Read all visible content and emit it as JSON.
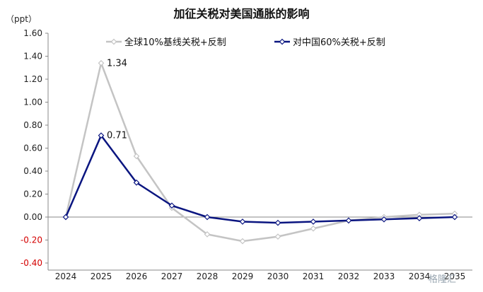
{
  "chart_data": {
    "type": "line",
    "title": "加征关税对美国通胀的影响",
    "unit": "（ppt）",
    "x": [
      "2024",
      "2025",
      "2026",
      "2027",
      "2028",
      "2029",
      "2030",
      "2031",
      "2032",
      "2033",
      "2034",
      "2035"
    ],
    "ylim": [
      -0.4,
      1.6
    ],
    "yticks": [
      "1.60",
      "1.40",
      "1.20",
      "1.00",
      "0.80",
      "0.60",
      "0.40",
      "0.20",
      "0.00",
      "-0.20",
      "-0.40"
    ],
    "grid": false,
    "legend": "top",
    "series": [
      {
        "name": "全球10%基线关税+反制",
        "color": "#c4c4c4",
        "values": [
          0,
          1.34,
          0.53,
          0.08,
          -0.15,
          -0.21,
          -0.17,
          -0.1,
          -0.03,
          0.0,
          0.02,
          0.03
        ]
      },
      {
        "name": "对中国60%关税+反制",
        "color": "#0a1580",
        "values": [
          0,
          0.71,
          0.3,
          0.1,
          0.0,
          -0.04,
          -0.05,
          -0.04,
          -0.03,
          -0.02,
          -0.01,
          0.0
        ]
      }
    ],
    "annotations": [
      {
        "text": "1.34",
        "series": 0,
        "index": 1
      },
      {
        "text": "0.71",
        "series": 1,
        "index": 1
      }
    ]
  },
  "watermark": "格隆汇"
}
